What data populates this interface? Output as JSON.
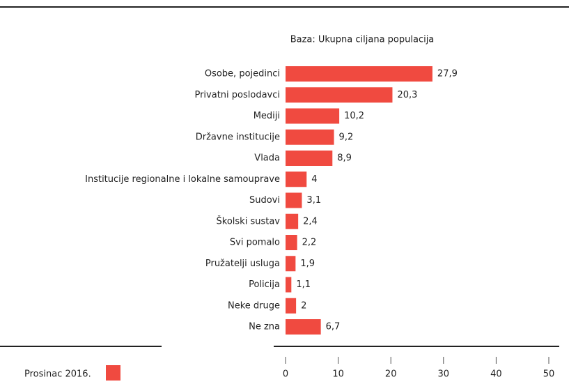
{
  "chart_data": {
    "type": "bar",
    "orientation": "horizontal",
    "subtitle": "Baza: Ukupna ciljana populacija",
    "categories": [
      "Osobe, pojedinci",
      "Privatni poslodavci",
      "Mediji",
      "Državne institucije",
      "Vlada",
      "Institucije regionalne i lokalne samouprave",
      "Sudovi",
      "Školski sustav",
      "Svi pomalo",
      "Pružatelji usluga",
      "Policija",
      "Neke druge",
      "Ne zna"
    ],
    "series": [
      {
        "name": "Prosinac 2016.",
        "color": "#f04a40",
        "values": [
          27.9,
          20.3,
          10.2,
          9.2,
          8.9,
          4,
          3.1,
          2.4,
          2.2,
          1.9,
          1.1,
          2,
          6.7
        ],
        "value_labels": [
          "27,9",
          "20,3",
          "10,2",
          "9,2",
          "8,9",
          "4",
          "3,1",
          "2,4",
          "2,2",
          "1,9",
          "1,1",
          "2",
          "6,7"
        ]
      }
    ],
    "xlim": [
      0,
      50
    ],
    "xticks": [
      0,
      10,
      20,
      30,
      40,
      50
    ],
    "legend": "bottom-left"
  }
}
